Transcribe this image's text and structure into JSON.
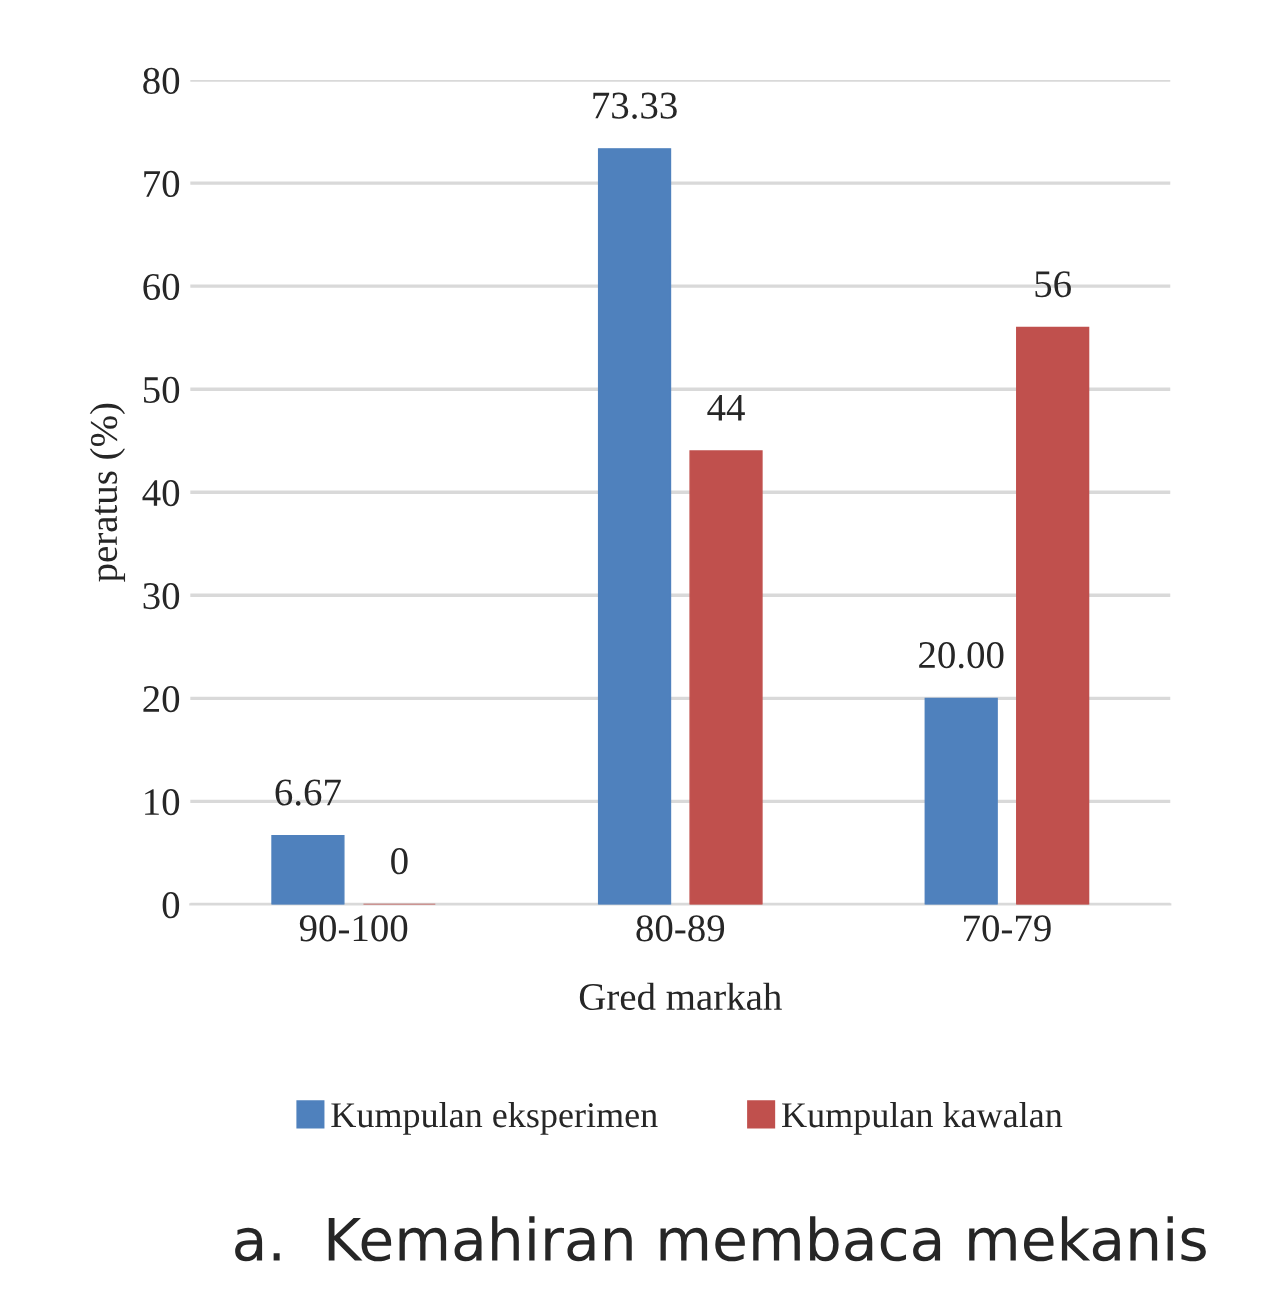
{
  "chart_data": {
    "type": "bar",
    "xlabel": "Gred markah",
    "ylabel": "peratus (%)",
    "categories": [
      "90-100",
      "80-89",
      "70-79"
    ],
    "series": [
      {
        "name": "Kumpulan eksperimen",
        "color": "#4f81bd",
        "values": [
          6.67,
          73.33,
          20.0
        ],
        "value_labels": [
          "6.67",
          "73.33",
          "20.00"
        ]
      },
      {
        "name": "Kumpulan kawalan",
        "color": "#c0504d",
        "values": [
          0,
          44,
          56
        ],
        "value_labels": [
          "0",
          "44",
          "56"
        ]
      }
    ],
    "ylim": [
      0,
      80
    ],
    "yticks": [
      0,
      10,
      20,
      30,
      40,
      50,
      60,
      70,
      80
    ],
    "grid": "y",
    "legend": "bottom",
    "annotations": [
      "a.  Kemahiran membaca mekanis"
    ]
  }
}
